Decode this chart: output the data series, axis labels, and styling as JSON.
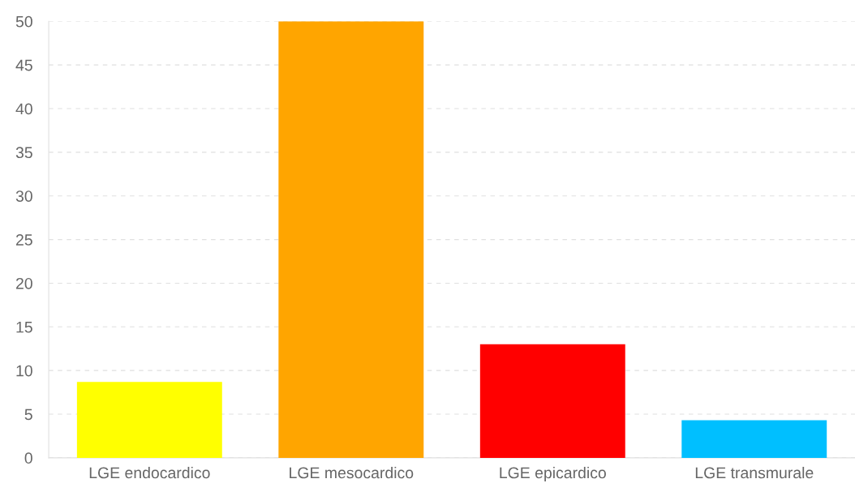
{
  "chart_data": {
    "type": "bar",
    "categories": [
      "LGE endocardico",
      "LGE mesocardico",
      "LGE epicardico",
      "LGE transmurale"
    ],
    "values": [
      8.7,
      50,
      13,
      4.3
    ],
    "colors": [
      "#ffff00",
      "#ffa500",
      "#ff0000",
      "#00bfff"
    ],
    "ylim": [
      0,
      50
    ],
    "yticks": [
      0,
      5,
      10,
      15,
      20,
      25,
      30,
      35,
      40,
      45,
      50
    ],
    "grid": "y"
  }
}
